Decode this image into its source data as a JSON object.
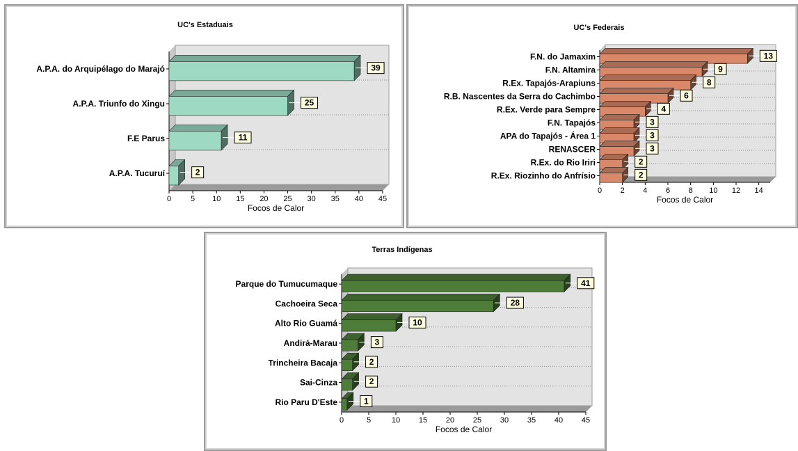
{
  "chart_data": [
    {
      "type": "bar",
      "orientation": "horizontal",
      "title": "UC's Estaduais",
      "xlabel": "Focos de Calor",
      "ylabel": "",
      "categories": [
        "A.P.A. do Arquipélago do Marajó",
        "A.P.A. Triunfo do Xingu",
        "F.E Parus",
        "A.P.A. Tucuruí"
      ],
      "values": [
        39,
        25,
        11,
        2
      ],
      "xlim": [
        0,
        45
      ],
      "ticks": [
        0,
        5,
        10,
        15,
        20,
        25,
        30,
        35,
        40,
        45
      ],
      "grid": true,
      "bar_color": "#9ed9c3"
    },
    {
      "type": "bar",
      "orientation": "horizontal",
      "title": "UC's Federais",
      "xlabel": "Focos de Calor",
      "ylabel": "",
      "categories": [
        "F.N. do Jamaxim",
        "F.N. Altamira",
        "R.Ex. Tapajós-Arapiuns",
        "R.B. Nascentes da Serra do Cachimbo",
        "R.Ex. Verde para Sempre",
        "F.N. Tapajós",
        "APA do Tapajós - Área 1",
        "RENASCER",
        "R.Ex. do Rio Iriri",
        "R.Ex. Riozinho do Anfrísio"
      ],
      "values": [
        13,
        9,
        8,
        6,
        4,
        3,
        3,
        3,
        2,
        2
      ],
      "xlim": [
        0,
        15
      ],
      "ticks": [
        0,
        2,
        4,
        6,
        8,
        10,
        12,
        14
      ],
      "grid": true,
      "bar_color": "#d9896a"
    },
    {
      "type": "bar",
      "orientation": "horizontal",
      "title": "Terras Indígenas",
      "xlabel": "Focos de Calor",
      "ylabel": "",
      "categories": [
        "Parque do Tumucumaque",
        "Cachoeira Seca",
        "Alto Rio Guamá",
        "Andirá-Marau",
        "Trincheira Bacaja",
        "Sai-Cinza",
        "Rio Paru D'Este"
      ],
      "values": [
        41,
        28,
        10,
        3,
        2,
        2,
        1
      ],
      "xlim": [
        0,
        45
      ],
      "ticks": [
        0,
        5,
        10,
        15,
        20,
        25,
        30,
        35,
        40,
        45
      ],
      "grid": true,
      "bar_color": "#4e7d3a"
    }
  ]
}
